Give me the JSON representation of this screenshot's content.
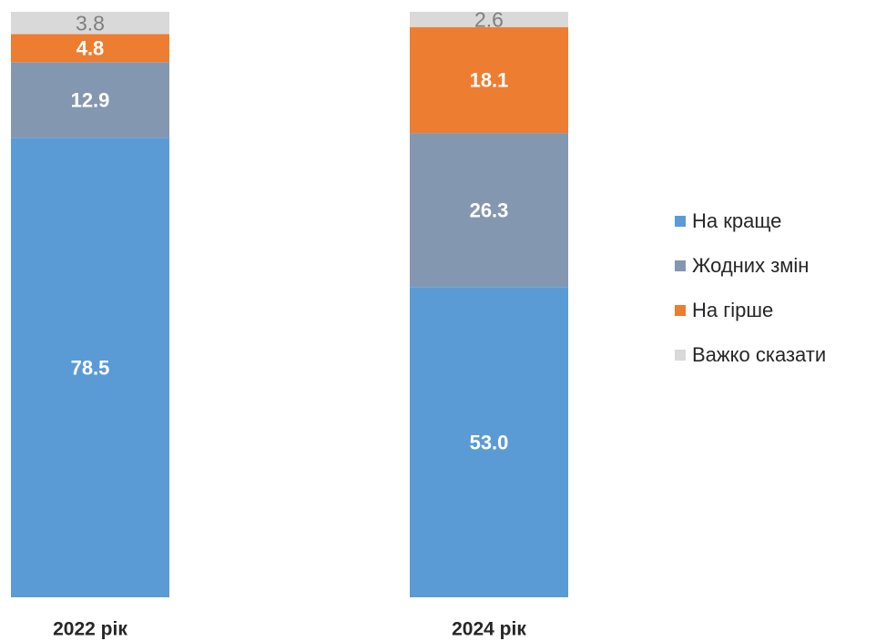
{
  "chart_data": {
    "type": "stacked-bar",
    "categories": [
      "2022 рік",
      "2024 рік"
    ],
    "series": [
      {
        "name": "На краще",
        "color": "#5b9bd5",
        "label_color": "#ffffff",
        "values": [
          78.5,
          53.0
        ],
        "value_labels": [
          "78.5",
          "53.0"
        ]
      },
      {
        "name": "Жодних змін",
        "color": "#8497b0",
        "label_color": "#ffffff",
        "values": [
          12.9,
          26.3
        ]
      },
      {
        "name": "На гірше",
        "color": "#ed7d31",
        "label_color": "#ffffff",
        "values": [
          4.8,
          18.1
        ]
      },
      {
        "name": "Важко сказати",
        "color": "#d9d9d9",
        "label_color": "#7f7f7f",
        "values": [
          3.8,
          2.6
        ]
      }
    ],
    "ylim": [
      0,
      100
    ],
    "legend": "right"
  }
}
